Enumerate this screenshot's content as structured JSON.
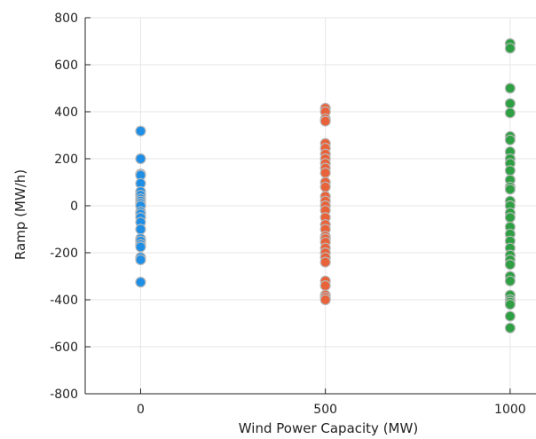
{
  "chart_data": {
    "type": "scatter",
    "title": "",
    "xlabel": "Wind Power Capacity (MW)",
    "ylabel": "Ramp (MW/h)",
    "xlim": [
      -150,
      1070
    ],
    "ylim": [
      -800,
      800
    ],
    "xticks": [
      0,
      500,
      1000
    ],
    "yticks": [
      -800,
      -600,
      -400,
      -200,
      0,
      200,
      400,
      600,
      800
    ],
    "xtick_labels": [
      "0",
      "500",
      "1000"
    ],
    "ytick_labels": [
      "-800",
      "-600",
      "-400",
      "-200",
      "0",
      "200",
      "400",
      "600",
      "800"
    ],
    "grid": true,
    "legend": "none",
    "series": [
      {
        "color": "#1f8fe5",
        "x": 0,
        "values": [
          318,
          200,
          135,
          130,
          95,
          60,
          45,
          30,
          20,
          10,
          0,
          -25,
          -35,
          -50,
          -70,
          -100,
          -140,
          -150,
          -165,
          -175,
          -220,
          -230,
          -325
        ]
      },
      {
        "color": "#e8623a",
        "x": 500,
        "values": [
          415,
          400,
          370,
          360,
          265,
          245,
          220,
          200,
          180,
          160,
          140,
          100,
          80,
          40,
          20,
          0,
          -20,
          -50,
          -80,
          -100,
          -130,
          -140,
          -155,
          -180,
          -200,
          -220,
          -240,
          -320,
          -340,
          -380,
          -390,
          -400
        ]
      },
      {
        "color": "#2ea043",
        "x": 1000,
        "values": [
          690,
          670,
          500,
          435,
          395,
          295,
          280,
          230,
          200,
          180,
          150,
          110,
          80,
          70,
          20,
          0,
          -30,
          -50,
          -90,
          -120,
          -150,
          -180,
          -210,
          -230,
          -250,
          -300,
          -320,
          -380,
          -400,
          -410,
          -420,
          -470,
          -520
        ]
      }
    ]
  }
}
